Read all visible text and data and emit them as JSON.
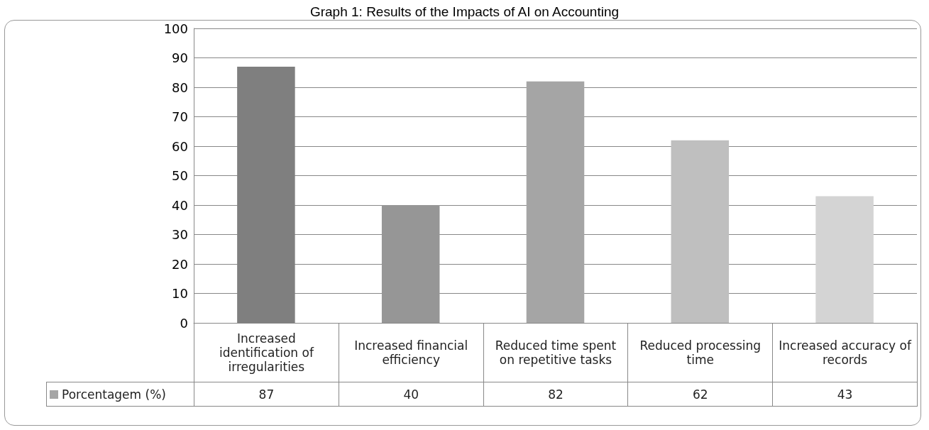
{
  "chart_data": {
    "type": "bar",
    "title": "Graph 1: Results of the Impacts of AI on Accounting",
    "categories": [
      "Increased identification of irregularities",
      "Increased financial efficiency",
      "Reduced time spent on repetitive tasks",
      "Reduced processing time",
      "Increased accuracy of records"
    ],
    "series": [
      {
        "name": "Porcentagem (%)",
        "color": "#a5a5a5",
        "colors": [
          "#7f7f7f",
          "#969696",
          "#a5a5a5",
          "#bfbfbf",
          "#d4d4d4"
        ],
        "values": [
          87,
          40,
          82,
          62,
          43
        ]
      }
    ],
    "ylim": [
      0,
      100
    ],
    "yticks": [
      0,
      10,
      20,
      30,
      40,
      50,
      60,
      70,
      80,
      90,
      100
    ],
    "grid": "y",
    "legend": "bottom left",
    "data_labels": true
  }
}
